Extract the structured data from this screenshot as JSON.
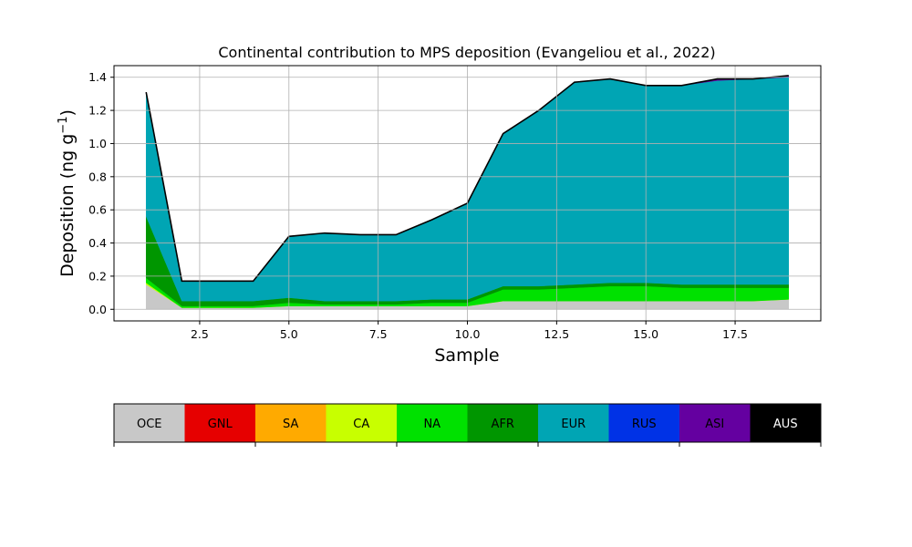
{
  "chart_data": [
    {
      "type": "area",
      "title": "Continental contribution to MPS deposition (Evangeliou et al., 2022)",
      "xlabel": "Sample",
      "ylabel": "Deposition (ng g",
      "ylabel_sup": "−1",
      "ylabel_close": ")",
      "xlim": [
        0.1,
        19.9
      ],
      "ylim": [
        -0.07,
        1.47
      ],
      "grid": true,
      "x_ticks": [
        2.5,
        5.0,
        7.5,
        10.0,
        12.5,
        15.0,
        17.5
      ],
      "x_tick_labels": [
        "2.5",
        "5.0",
        "7.5",
        "10.0",
        "12.5",
        "15.0",
        "17.5"
      ],
      "y_ticks": [
        0.0,
        0.2,
        0.4,
        0.6,
        0.8,
        1.0,
        1.2,
        1.4
      ],
      "y_tick_labels": [
        "0.0",
        "0.2",
        "0.4",
        "0.6",
        "0.8",
        "1.0",
        "1.2",
        "1.4"
      ],
      "x": [
        1,
        2,
        3,
        4,
        5,
        6,
        7,
        8,
        9,
        10,
        11,
        12,
        13,
        14,
        15,
        16,
        17,
        18,
        19
      ],
      "series": [
        {
          "name": "OCE",
          "color": "#c8c8c8",
          "values": [
            0.15,
            0.01,
            0.01,
            0.01,
            0.02,
            0.02,
            0.02,
            0.02,
            0.02,
            0.02,
            0.05,
            0.05,
            0.05,
            0.05,
            0.05,
            0.05,
            0.05,
            0.05,
            0.06
          ]
        },
        {
          "name": "GNL",
          "color": "#e60000",
          "values": [
            0,
            0,
            0,
            0,
            0,
            0,
            0,
            0,
            0,
            0,
            0,
            0,
            0,
            0,
            0,
            0,
            0,
            0,
            0
          ]
        },
        {
          "name": "SA",
          "color": "#ffaa00",
          "values": [
            0,
            0,
            0,
            0,
            0,
            0,
            0,
            0,
            0,
            0,
            0,
            0,
            0,
            0,
            0,
            0,
            0,
            0,
            0
          ]
        },
        {
          "name": "CA",
          "color": "#c8ff00",
          "values": [
            0.01,
            0,
            0,
            0,
            0,
            0,
            0,
            0,
            0,
            0,
            0,
            0,
            0,
            0,
            0,
            0,
            0,
            0,
            0
          ]
        },
        {
          "name": "NA",
          "color": "#00e100",
          "values": [
            0.03,
            0.01,
            0.01,
            0.01,
            0.02,
            0.01,
            0.01,
            0.01,
            0.02,
            0.02,
            0.07,
            0.07,
            0.08,
            0.09,
            0.09,
            0.08,
            0.08,
            0.08,
            0.07
          ]
        },
        {
          "name": "AFR",
          "color": "#009600",
          "values": [
            0.37,
            0.03,
            0.03,
            0.03,
            0.03,
            0.02,
            0.02,
            0.02,
            0.02,
            0.02,
            0.02,
            0.02,
            0.02,
            0.02,
            0.02,
            0.02,
            0.02,
            0.02,
            0.02
          ]
        },
        {
          "name": "EUR",
          "color": "#00a5b4",
          "values": [
            0.75,
            0.12,
            0.12,
            0.12,
            0.37,
            0.41,
            0.4,
            0.4,
            0.48,
            0.58,
            0.92,
            1.06,
            1.22,
            1.23,
            1.19,
            1.2,
            1.23,
            1.24,
            1.25
          ]
        },
        {
          "name": "RUS",
          "color": "#0032e6",
          "values": [
            0,
            0,
            0,
            0,
            0,
            0,
            0,
            0,
            0,
            0,
            0,
            0,
            0,
            0,
            0,
            0,
            0,
            0,
            0
          ]
        },
        {
          "name": "ASI",
          "color": "#6400a0",
          "values": [
            0,
            0,
            0,
            0,
            0,
            0,
            0,
            0,
            0,
            0,
            0,
            0,
            0,
            0,
            0,
            0,
            0.01,
            0,
            0.01
          ]
        },
        {
          "name": "AUS",
          "color": "#000000",
          "values": [
            0,
            0,
            0,
            0,
            0,
            0,
            0,
            0,
            0,
            0,
            0,
            0,
            0,
            0,
            0,
            0,
            0,
            0,
            0
          ]
        }
      ]
    },
    {
      "type": "colorbar",
      "labels": [
        "OCE",
        "GNL",
        "SA",
        "CA",
        "NA",
        "AFR",
        "EUR",
        "RUS",
        "ASI",
        "AUS"
      ],
      "colors": [
        "#c8c8c8",
        "#e60000",
        "#ffaa00",
        "#c8ff00",
        "#00e100",
        "#009600",
        "#00a5b4",
        "#0032e6",
        "#6400a0",
        "#000000"
      ],
      "label_colors": [
        "#000000",
        "#000000",
        "#000000",
        "#000000",
        "#000000",
        "#000000",
        "#000000",
        "#000000",
        "#000000",
        "#ffffff"
      ]
    }
  ]
}
